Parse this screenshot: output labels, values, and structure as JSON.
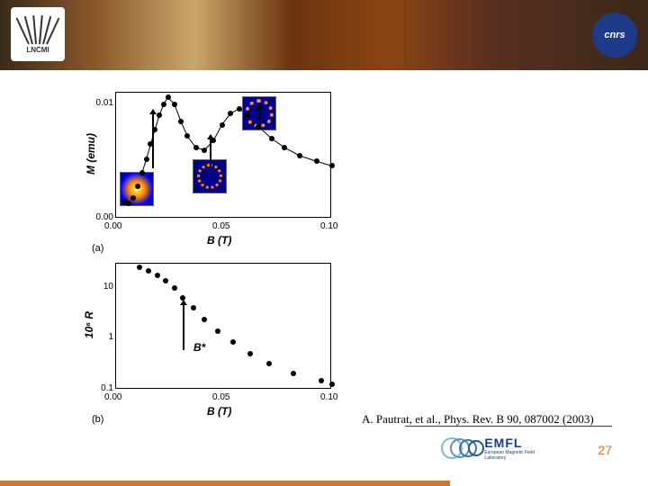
{
  "header": {
    "lncmi_label": "LNCMI",
    "cnrs_label": "cnrs"
  },
  "charts": {
    "panel_a": {
      "type": "scatter",
      "label": "(a)",
      "xlabel": "B  (T)",
      "ylabel": "M (emu)",
      "xlim": [
        0,
        0.1
      ],
      "ylim": [
        0,
        0.011
      ],
      "xticks": [
        0.0,
        0.05,
        0.1
      ],
      "yticks": [
        0.0,
        0.01
      ],
      "points": [
        {
          "x": 0.004,
          "y": 0.0015
        },
        {
          "x": 0.006,
          "y": 0.0013
        },
        {
          "x": 0.008,
          "y": 0.0018
        },
        {
          "x": 0.01,
          "y": 0.0028
        },
        {
          "x": 0.012,
          "y": 0.004
        },
        {
          "x": 0.014,
          "y": 0.0052
        },
        {
          "x": 0.016,
          "y": 0.0065
        },
        {
          "x": 0.018,
          "y": 0.0078
        },
        {
          "x": 0.02,
          "y": 0.009
        },
        {
          "x": 0.022,
          "y": 0.01
        },
        {
          "x": 0.024,
          "y": 0.0106
        },
        {
          "x": 0.027,
          "y": 0.01
        },
        {
          "x": 0.03,
          "y": 0.0085
        },
        {
          "x": 0.033,
          "y": 0.0072
        },
        {
          "x": 0.037,
          "y": 0.0062
        },
        {
          "x": 0.041,
          "y": 0.006
        },
        {
          "x": 0.045,
          "y": 0.0068
        },
        {
          "x": 0.049,
          "y": 0.0082
        },
        {
          "x": 0.053,
          "y": 0.0092
        },
        {
          "x": 0.057,
          "y": 0.0096
        },
        {
          "x": 0.061,
          "y": 0.009
        },
        {
          "x": 0.066,
          "y": 0.008
        },
        {
          "x": 0.072,
          "y": 0.007
        },
        {
          "x": 0.078,
          "y": 0.0062
        },
        {
          "x": 0.085,
          "y": 0.0055
        },
        {
          "x": 0.093,
          "y": 0.005
        },
        {
          "x": 0.1,
          "y": 0.0046
        }
      ],
      "line_color": "#000000",
      "marker_size": 6,
      "marker_color": "#000000",
      "background_color": "#ffffff",
      "insets": 3
    },
    "panel_b": {
      "type": "scatter",
      "label": "(b)",
      "xlabel": "B  (T)",
      "ylabel": "10⁶ R",
      "xlim": [
        0,
        0.1
      ],
      "ylim_log": [
        0.1,
        30
      ],
      "xticks": [
        0.0,
        0.05,
        0.1
      ],
      "yticks": [
        0.1,
        1,
        10
      ],
      "ytick_labels": [
        "0.1",
        "1",
        "10"
      ],
      "points": [
        {
          "x": 0.011,
          "y": 26
        },
        {
          "x": 0.015,
          "y": 22
        },
        {
          "x": 0.019,
          "y": 18
        },
        {
          "x": 0.023,
          "y": 14
        },
        {
          "x": 0.027,
          "y": 10
        },
        {
          "x": 0.031,
          "y": 6.5
        },
        {
          "x": 0.036,
          "y": 4.0
        },
        {
          "x": 0.041,
          "y": 2.4
        },
        {
          "x": 0.047,
          "y": 1.4
        },
        {
          "x": 0.054,
          "y": 0.85
        },
        {
          "x": 0.062,
          "y": 0.5
        },
        {
          "x": 0.071,
          "y": 0.32
        },
        {
          "x": 0.082,
          "y": 0.21
        },
        {
          "x": 0.095,
          "y": 0.15
        },
        {
          "x": 0.1,
          "y": 0.13
        }
      ],
      "annotation": "B*",
      "marker_size": 6,
      "marker_color": "#000000",
      "background_color": "#ffffff"
    }
  },
  "citation": "A. Pautrat, et al., Phys. Rev. B 90, 087002 (2003)",
  "footer": {
    "emfl_main": "EMFL",
    "emfl_sub": "European Magnetic Field Laboratory",
    "page_number": "27"
  },
  "colors": {
    "accent_orange": "#c87830",
    "accent_blue": "#1a3a8a",
    "cnrs_blue": "#1e3a8a"
  }
}
